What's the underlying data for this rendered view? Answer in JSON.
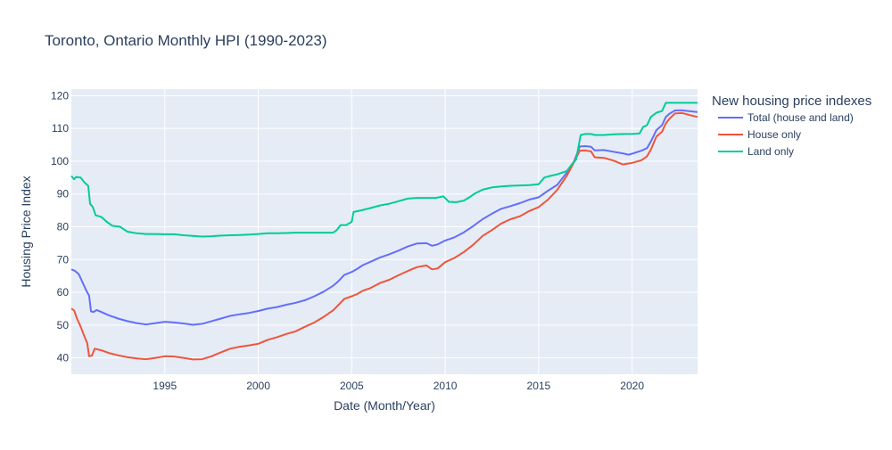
{
  "chart_data": {
    "type": "line",
    "title": "Toronto, Ontario Monthly HPI (1990-2023)",
    "xlabel": "Date (Month/Year)",
    "ylabel": "Housing Price Index",
    "xlim": [
      1990.0,
      2023.5
    ],
    "ylim": [
      35,
      122
    ],
    "x_ticks": [
      1995,
      2000,
      2005,
      2010,
      2015,
      2020
    ],
    "y_ticks": [
      40,
      50,
      60,
      70,
      80,
      90,
      100,
      110,
      120
    ],
    "grid": true,
    "legend_title": "New housing price indexes",
    "legend_position": "right",
    "plot_background": "#e5ecf6",
    "series": [
      {
        "name": "Total (house and land)",
        "color": "#636efa",
        "points": [
          [
            1990.0,
            67.0
          ],
          [
            1990.2,
            66.5
          ],
          [
            1990.4,
            65.5
          ],
          [
            1990.6,
            63.0
          ],
          [
            1990.8,
            60.5
          ],
          [
            1990.95,
            59.0
          ],
          [
            1991.05,
            54.2
          ],
          [
            1991.2,
            54.0
          ],
          [
            1991.35,
            54.6
          ],
          [
            1991.6,
            54.0
          ],
          [
            1992.0,
            53.0
          ],
          [
            1992.5,
            52.0
          ],
          [
            1993.0,
            51.2
          ],
          [
            1993.5,
            50.6
          ],
          [
            1994.0,
            50.2
          ],
          [
            1994.5,
            50.6
          ],
          [
            1995.0,
            51.0
          ],
          [
            1995.5,
            50.8
          ],
          [
            1996.0,
            50.5
          ],
          [
            1996.5,
            50.1
          ],
          [
            1997.0,
            50.4
          ],
          [
            1997.5,
            51.2
          ],
          [
            1998.0,
            52.0
          ],
          [
            1998.5,
            52.8
          ],
          [
            1999.0,
            53.3
          ],
          [
            1999.5,
            53.7
          ],
          [
            2000.0,
            54.3
          ],
          [
            2000.5,
            55.0
          ],
          [
            2001.0,
            55.5
          ],
          [
            2001.5,
            56.2
          ],
          [
            2002.0,
            56.8
          ],
          [
            2002.5,
            57.6
          ],
          [
            2003.0,
            58.8
          ],
          [
            2003.5,
            60.2
          ],
          [
            2004.0,
            62.0
          ],
          [
            2004.3,
            63.5
          ],
          [
            2004.6,
            65.3
          ],
          [
            2005.0,
            66.2
          ],
          [
            2005.3,
            67.2
          ],
          [
            2005.6,
            68.3
          ],
          [
            2006.0,
            69.3
          ],
          [
            2006.5,
            70.6
          ],
          [
            2007.0,
            71.6
          ],
          [
            2007.5,
            72.7
          ],
          [
            2008.0,
            74.0
          ],
          [
            2008.5,
            74.9
          ],
          [
            2009.0,
            75.0
          ],
          [
            2009.3,
            74.2
          ],
          [
            2009.6,
            74.6
          ],
          [
            2010.0,
            75.8
          ],
          [
            2010.5,
            76.8
          ],
          [
            2011.0,
            78.3
          ],
          [
            2011.5,
            80.2
          ],
          [
            2012.0,
            82.3
          ],
          [
            2012.5,
            84.0
          ],
          [
            2013.0,
            85.5
          ],
          [
            2013.5,
            86.3
          ],
          [
            2014.0,
            87.2
          ],
          [
            2014.5,
            88.3
          ],
          [
            2015.0,
            89.0
          ],
          [
            2015.5,
            91.0
          ],
          [
            2016.0,
            92.8
          ],
          [
            2016.5,
            96.5
          ],
          [
            2016.9,
            100.0
          ],
          [
            2017.2,
            104.5
          ],
          [
            2017.5,
            104.6
          ],
          [
            2017.8,
            104.4
          ],
          [
            2018.0,
            103.3
          ],
          [
            2018.5,
            103.4
          ],
          [
            2019.0,
            102.9
          ],
          [
            2019.5,
            102.4
          ],
          [
            2019.8,
            102.0
          ],
          [
            2020.0,
            102.3
          ],
          [
            2020.5,
            103.2
          ],
          [
            2020.8,
            104.0
          ],
          [
            2021.0,
            106.0
          ],
          [
            2021.3,
            109.5
          ],
          [
            2021.6,
            111.0
          ],
          [
            2021.8,
            113.5
          ],
          [
            2022.0,
            114.5
          ],
          [
            2022.3,
            115.5
          ],
          [
            2022.7,
            115.5
          ],
          [
            2023.0,
            115.3
          ],
          [
            2023.5,
            115.0
          ]
        ]
      },
      {
        "name": "House only",
        "color": "#ef553b",
        "points": [
          [
            1990.0,
            55.0
          ],
          [
            1990.15,
            54.5
          ],
          [
            1990.3,
            52.0
          ],
          [
            1990.5,
            49.5
          ],
          [
            1990.7,
            46.5
          ],
          [
            1990.85,
            44.5
          ],
          [
            1990.95,
            40.5
          ],
          [
            1991.1,
            40.7
          ],
          [
            1991.25,
            42.8
          ],
          [
            1991.6,
            42.3
          ],
          [
            1992.0,
            41.5
          ],
          [
            1992.5,
            40.8
          ],
          [
            1993.0,
            40.2
          ],
          [
            1993.5,
            39.8
          ],
          [
            1994.0,
            39.6
          ],
          [
            1994.5,
            40.0
          ],
          [
            1995.0,
            40.5
          ],
          [
            1995.5,
            40.4
          ],
          [
            1996.0,
            40.0
          ],
          [
            1996.5,
            39.5
          ],
          [
            1997.0,
            39.6
          ],
          [
            1997.5,
            40.5
          ],
          [
            1998.0,
            41.7
          ],
          [
            1998.5,
            42.8
          ],
          [
            1999.0,
            43.4
          ],
          [
            1999.5,
            43.8
          ],
          [
            2000.0,
            44.3
          ],
          [
            2000.5,
            45.5
          ],
          [
            2001.0,
            46.3
          ],
          [
            2001.5,
            47.3
          ],
          [
            2002.0,
            48.1
          ],
          [
            2002.5,
            49.5
          ],
          [
            2003.0,
            50.8
          ],
          [
            2003.5,
            52.5
          ],
          [
            2004.0,
            54.5
          ],
          [
            2004.3,
            56.2
          ],
          [
            2004.6,
            58.0
          ],
          [
            2005.0,
            58.8
          ],
          [
            2005.3,
            59.5
          ],
          [
            2005.6,
            60.5
          ],
          [
            2006.0,
            61.3
          ],
          [
            2006.5,
            62.8
          ],
          [
            2007.0,
            63.8
          ],
          [
            2007.5,
            65.2
          ],
          [
            2008.0,
            66.5
          ],
          [
            2008.5,
            67.7
          ],
          [
            2009.0,
            68.2
          ],
          [
            2009.3,
            67.0
          ],
          [
            2009.6,
            67.3
          ],
          [
            2010.0,
            69.2
          ],
          [
            2010.5,
            70.5
          ],
          [
            2011.0,
            72.3
          ],
          [
            2011.5,
            74.5
          ],
          [
            2012.0,
            77.2
          ],
          [
            2012.5,
            79.0
          ],
          [
            2013.0,
            81.0
          ],
          [
            2013.5,
            82.3
          ],
          [
            2014.0,
            83.2
          ],
          [
            2014.5,
            84.8
          ],
          [
            2015.0,
            86.0
          ],
          [
            2015.5,
            88.3
          ],
          [
            2016.0,
            91.3
          ],
          [
            2016.5,
            95.5
          ],
          [
            2016.9,
            99.8
          ],
          [
            2017.2,
            103.2
          ],
          [
            2017.5,
            103.3
          ],
          [
            2017.8,
            103.0
          ],
          [
            2018.0,
            101.2
          ],
          [
            2018.5,
            101.0
          ],
          [
            2019.0,
            100.2
          ],
          [
            2019.5,
            99.0
          ],
          [
            2019.8,
            99.3
          ],
          [
            2020.0,
            99.5
          ],
          [
            2020.5,
            100.3
          ],
          [
            2020.8,
            101.5
          ],
          [
            2021.0,
            103.5
          ],
          [
            2021.3,
            107.5
          ],
          [
            2021.6,
            109.0
          ],
          [
            2021.8,
            111.5
          ],
          [
            2022.0,
            113.0
          ],
          [
            2022.3,
            114.6
          ],
          [
            2022.7,
            114.7
          ],
          [
            2023.0,
            114.2
          ],
          [
            2023.5,
            113.5
          ]
        ]
      },
      {
        "name": "Land only",
        "color": "#00cc96",
        "points": [
          [
            1990.0,
            95.5
          ],
          [
            1990.15,
            94.5
          ],
          [
            1990.25,
            95.2
          ],
          [
            1990.5,
            95.0
          ],
          [
            1990.7,
            93.5
          ],
          [
            1990.9,
            92.5
          ],
          [
            1991.0,
            87.0
          ],
          [
            1991.15,
            86.0
          ],
          [
            1991.3,
            83.5
          ],
          [
            1991.6,
            83.0
          ],
          [
            1991.9,
            81.5
          ],
          [
            1992.2,
            80.3
          ],
          [
            1992.6,
            80.0
          ],
          [
            1993.0,
            78.5
          ],
          [
            1993.5,
            78.0
          ],
          [
            1994.0,
            77.8
          ],
          [
            1994.5,
            77.8
          ],
          [
            1995.0,
            77.7
          ],
          [
            1995.5,
            77.7
          ],
          [
            1996.0,
            77.4
          ],
          [
            1996.5,
            77.2
          ],
          [
            1997.0,
            77.0
          ],
          [
            1997.5,
            77.1
          ],
          [
            1998.0,
            77.3
          ],
          [
            1998.5,
            77.4
          ],
          [
            1999.0,
            77.5
          ],
          [
            1999.5,
            77.6
          ],
          [
            2000.0,
            77.8
          ],
          [
            2000.5,
            78.0
          ],
          [
            2001.0,
            78.0
          ],
          [
            2001.5,
            78.1
          ],
          [
            2002.0,
            78.2
          ],
          [
            2002.5,
            78.2
          ],
          [
            2003.0,
            78.2
          ],
          [
            2003.5,
            78.2
          ],
          [
            2004.0,
            78.2
          ],
          [
            2004.2,
            79.0
          ],
          [
            2004.4,
            80.5
          ],
          [
            2004.7,
            80.5
          ],
          [
            2005.0,
            81.5
          ],
          [
            2005.1,
            84.5
          ],
          [
            2005.5,
            85.0
          ],
          [
            2006.0,
            85.7
          ],
          [
            2006.5,
            86.5
          ],
          [
            2007.0,
            87.0
          ],
          [
            2007.5,
            87.8
          ],
          [
            2008.0,
            88.6
          ],
          [
            2008.5,
            88.8
          ],
          [
            2009.0,
            88.8
          ],
          [
            2009.5,
            88.8
          ],
          [
            2009.9,
            89.3
          ],
          [
            2010.2,
            87.6
          ],
          [
            2010.6,
            87.5
          ],
          [
            2011.0,
            88.0
          ],
          [
            2011.3,
            89.0
          ],
          [
            2011.6,
            90.2
          ],
          [
            2012.0,
            91.3
          ],
          [
            2012.5,
            92.0
          ],
          [
            2013.0,
            92.3
          ],
          [
            2013.5,
            92.5
          ],
          [
            2014.0,
            92.6
          ],
          [
            2014.5,
            92.7
          ],
          [
            2015.0,
            93.0
          ],
          [
            2015.3,
            95.0
          ],
          [
            2015.6,
            95.5
          ],
          [
            2016.0,
            96.0
          ],
          [
            2016.5,
            97.0
          ],
          [
            2016.8,
            99.2
          ],
          [
            2017.0,
            100.5
          ],
          [
            2017.25,
            108.0
          ],
          [
            2017.5,
            108.3
          ],
          [
            2017.8,
            108.3
          ],
          [
            2018.0,
            108.0
          ],
          [
            2018.5,
            108.0
          ],
          [
            2019.0,
            108.2
          ],
          [
            2019.5,
            108.3
          ],
          [
            2019.8,
            108.3
          ],
          [
            2020.0,
            108.3
          ],
          [
            2020.4,
            108.5
          ],
          [
            2020.6,
            110.5
          ],
          [
            2020.8,
            111.0
          ],
          [
            2021.0,
            113.5
          ],
          [
            2021.3,
            114.8
          ],
          [
            2021.6,
            115.3
          ],
          [
            2021.8,
            117.8
          ],
          [
            2022.0,
            117.8
          ],
          [
            2022.5,
            117.8
          ],
          [
            2023.0,
            117.8
          ],
          [
            2023.5,
            117.8
          ]
        ]
      }
    ]
  }
}
